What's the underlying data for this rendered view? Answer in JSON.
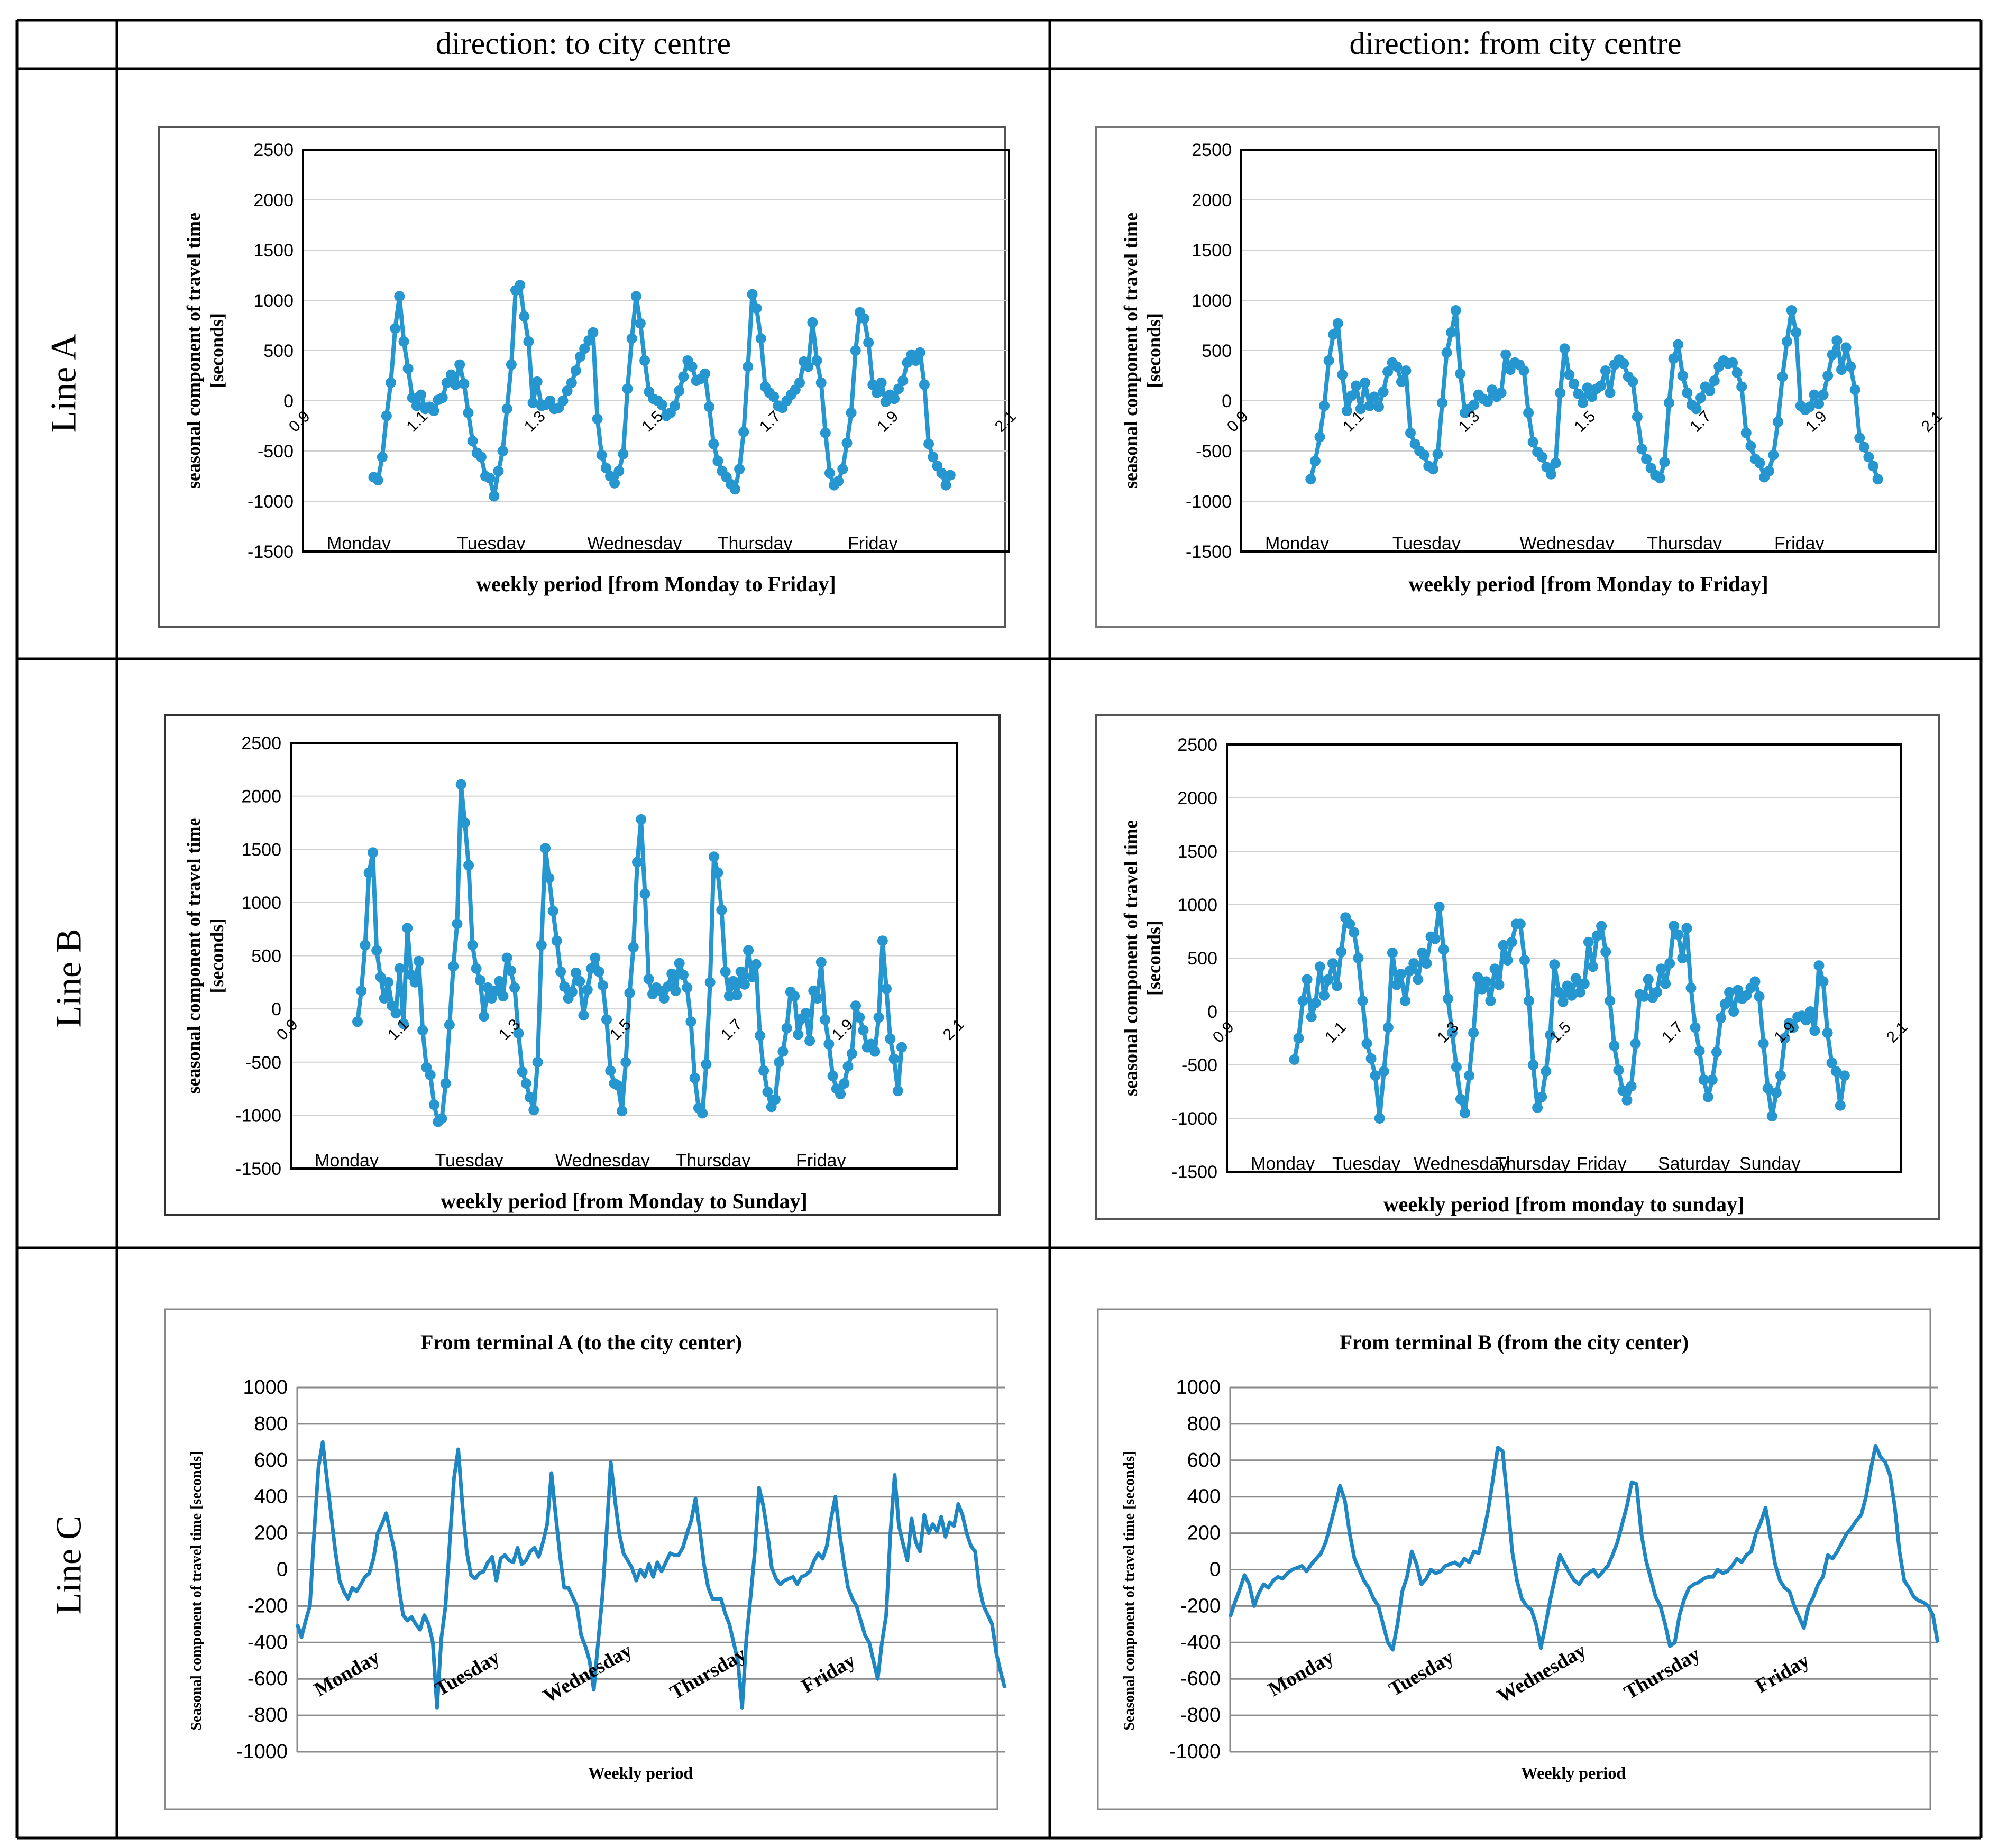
{
  "table": {
    "headers": [
      "direction: to city centre",
      "direction: from city centre"
    ],
    "rows": [
      "Line A",
      "Line B",
      "Line C"
    ]
  },
  "colors": {
    "line": "#2596D0",
    "lineC": "#1F86C4",
    "grid": "#D0D0D0",
    "gridC": "#8A8A8A",
    "frame": "#000000"
  },
  "chart_data": [
    {
      "id": "A_to",
      "type": "line",
      "title": "",
      "xlabel": "weekly period  [from Monday to Friday]",
      "ylabel": "seasonal component of travel time [seconds]",
      "ylim": [
        -1500,
        2500
      ],
      "yticks": [
        -1500,
        -1000,
        -500,
        0,
        500,
        1000,
        1500,
        2000,
        2500
      ],
      "xlim": [
        0.9,
        2.1
      ],
      "xticks": [
        "0.9",
        "1.1",
        "1.3",
        "1.5",
        "1.7",
        "1.9",
        "2.1"
      ],
      "day_labels": [
        "Monday",
        "Tuesday",
        "Wednesday",
        "Thursday",
        "Friday"
      ],
      "x_start": 1.02,
      "x_end": 2.0,
      "values": [
        -760,
        -790,
        -560,
        -150,
        180,
        720,
        1040,
        590,
        320,
        30,
        -50,
        60,
        -80,
        -60,
        -100,
        10,
        30,
        180,
        260,
        160,
        360,
        170,
        -120,
        -400,
        -520,
        -560,
        -750,
        -770,
        -950,
        -700,
        -500,
        -80,
        360,
        1100,
        1150,
        840,
        590,
        -20,
        190,
        -50,
        -40,
        0,
        -80,
        -70,
        0,
        100,
        180,
        300,
        440,
        520,
        600,
        680,
        -180,
        -540,
        -670,
        -750,
        -820,
        -700,
        -530,
        120,
        620,
        1040,
        770,
        400,
        90,
        20,
        0,
        -40,
        -150,
        -120,
        -50,
        100,
        240,
        400,
        340,
        200,
        220,
        270,
        -60,
        -430,
        -600,
        -700,
        -760,
        -830,
        -880,
        -680,
        -310,
        340,
        1060,
        920,
        620,
        140,
        80,
        40,
        -50,
        -70,
        0,
        60,
        110,
        180,
        390,
        340,
        780,
        400,
        180,
        -320,
        -720,
        -840,
        -800,
        -680,
        -420,
        -120,
        500,
        880,
        820,
        580,
        160,
        80,
        180,
        -10,
        60,
        20,
        120,
        200,
        380,
        460,
        400,
        480,
        160,
        -430,
        -560,
        -650,
        -720,
        -840,
        -740
      ]
    },
    {
      "id": "A_from",
      "type": "line",
      "title": "",
      "xlabel": "weekly period  [from Monday to Friday]",
      "ylabel": "seasonal component of travel time [seconds]",
      "ylim": [
        -1500,
        2500
      ],
      "yticks": [
        -1500,
        -1000,
        -500,
        0,
        500,
        1000,
        1500,
        2000,
        2500
      ],
      "xlim": [
        0.9,
        2.1
      ],
      "xticks": [
        "0.9",
        "1.1",
        "1.3",
        "1.5",
        "1.7",
        "1.9",
        "2.1"
      ],
      "day_labels": [
        "Monday",
        "Tuesday",
        "Wednesday",
        "Thursday",
        "Friday"
      ],
      "x_start": 1.02,
      "x_end": 2.0,
      "values": [
        -780,
        -600,
        -360,
        -50,
        400,
        660,
        770,
        260,
        -100,
        50,
        150,
        -80,
        180,
        -50,
        40,
        -60,
        90,
        290,
        380,
        340,
        190,
        300,
        -320,
        -430,
        -500,
        -540,
        -650,
        -680,
        -530,
        -20,
        480,
        680,
        900,
        270,
        -120,
        -80,
        -40,
        60,
        20,
        -10,
        110,
        40,
        80,
        460,
        310,
        380,
        360,
        300,
        -120,
        -410,
        -510,
        -560,
        -660,
        -730,
        -620,
        80,
        520,
        260,
        170,
        70,
        -20,
        130,
        40,
        120,
        150,
        300,
        80,
        360,
        410,
        370,
        240,
        190,
        -160,
        -480,
        -580,
        -670,
        -740,
        -770,
        -610,
        -20,
        420,
        560,
        250,
        80,
        -40,
        -80,
        30,
        140,
        100,
        200,
        340,
        400,
        370,
        380,
        280,
        140,
        -320,
        -450,
        -580,
        -620,
        -760,
        -700,
        -540,
        -210,
        240,
        590,
        900,
        680,
        -50,
        -90,
        -60,
        60,
        -30,
        60,
        250,
        460,
        600,
        310,
        530,
        340,
        110,
        -370,
        -460,
        -560,
        -650,
        -780
      ]
    },
    {
      "id": "B_to",
      "type": "line",
      "title": "",
      "xlabel": "weekly period  [from Monday to Sunday]",
      "ylabel": "seasonal component of travel time [seconds]",
      "ylim": [
        -1500,
        2500
      ],
      "yticks": [
        -1500,
        -1000,
        -500,
        0,
        500,
        1000,
        1500,
        2000,
        2500
      ],
      "xlim": [
        0.9,
        2.1
      ],
      "xticks": [
        "0.9",
        "1.1",
        "1.3",
        "1.5",
        "1.7",
        "1.9",
        "2.1"
      ],
      "day_labels": [
        "Monday",
        "Tuesday",
        "Wednesday",
        "Thursday",
        "Friday"
      ],
      "x_start": 1.02,
      "x_end": 2.0,
      "values": [
        -120,
        170,
        600,
        1280,
        1470,
        550,
        300,
        100,
        250,
        30,
        -40,
        380,
        -140,
        760,
        320,
        250,
        450,
        -200,
        -550,
        -620,
        -900,
        -1060,
        -1030,
        -700,
        -150,
        400,
        800,
        2110,
        1750,
        1350,
        600,
        380,
        270,
        -70,
        200,
        100,
        170,
        260,
        120,
        480,
        360,
        200,
        -230,
        -590,
        -700,
        -830,
        -950,
        -500,
        600,
        1510,
        1230,
        920,
        640,
        350,
        210,
        100,
        160,
        340,
        260,
        -60,
        180,
        380,
        480,
        350,
        220,
        -100,
        -580,
        -700,
        -720,
        -960,
        -500,
        150,
        580,
        1380,
        1780,
        1080,
        280,
        140,
        200,
        170,
        100,
        210,
        330,
        170,
        430,
        320,
        200,
        -120,
        -650,
        -930,
        -980,
        -520,
        250,
        1430,
        1280,
        930,
        350,
        120,
        260,
        130,
        350,
        230,
        550,
        300,
        420,
        -250,
        -580,
        -780,
        -920,
        -850,
        -500,
        -400,
        -180,
        160,
        120,
        -240,
        -90,
        -40,
        -300,
        170,
        100,
        440,
        -100,
        -330,
        -630,
        -750,
        -800,
        -700,
        -540,
        -420,
        30,
        -80,
        -200,
        -360,
        -330,
        -400,
        -80,
        640,
        190,
        -280,
        -470,
        -770,
        -360
      ]
    },
    {
      "id": "B_from",
      "type": "line",
      "title": "",
      "xlabel": "weekly period  [from monday to sunday]",
      "ylabel": "seasonal component of travel time [seconds]",
      "ylim": [
        -1500,
        2500
      ],
      "yticks": [
        -1500,
        -1000,
        -500,
        0,
        500,
        1000,
        1500,
        2000,
        2500
      ],
      "xlim": [
        0.9,
        2.1
      ],
      "xticks": [
        "0.9",
        "1.1",
        "1.3",
        "1.5",
        "1.7",
        "1.9",
        "2.1"
      ],
      "day_labels": [
        "Monday",
        "Tuesday",
        "Wednesday",
        "Thursday",
        "Friday",
        "Saturday",
        "Sunday"
      ],
      "x_start": 1.02,
      "x_end": 2.0,
      "values": [
        -450,
        -250,
        100,
        300,
        -50,
        80,
        420,
        150,
        300,
        450,
        240,
        560,
        880,
        820,
        740,
        500,
        100,
        -300,
        -440,
        -600,
        -1000,
        -560,
        -150,
        550,
        250,
        350,
        100,
        380,
        450,
        300,
        550,
        450,
        700,
        680,
        980,
        580,
        120,
        -200,
        -520,
        -820,
        -950,
        -600,
        -200,
        320,
        210,
        280,
        100,
        400,
        250,
        620,
        480,
        650,
        820,
        820,
        480,
        100,
        -500,
        -900,
        -800,
        -560,
        -220,
        440,
        180,
        90,
        240,
        150,
        310,
        180,
        260,
        650,
        420,
        710,
        800,
        560,
        100,
        -320,
        -550,
        -740,
        -830,
        -700,
        -300,
        160,
        140,
        300,
        130,
        180,
        400,
        260,
        450,
        800,
        720,
        500,
        780,
        220,
        -150,
        -370,
        -640,
        -800,
        -640,
        -380,
        -60,
        70,
        180,
        0,
        200,
        120,
        150,
        220,
        280,
        140,
        -300,
        -720,
        -980,
        -760,
        -600,
        -250,
        -110,
        -150,
        -50,
        -40,
        -80,
        0,
        -180,
        430,
        280,
        -200,
        -480,
        -560,
        -880,
        -600
      ]
    },
    {
      "id": "C_to",
      "type": "line",
      "title": "From terminal A (to the city center)",
      "xlabel": "Weekly period",
      "ylabel": "Seasonal component of travel time [seconds]",
      "ylim": [
        -1000,
        1000
      ],
      "yticks": [
        -1000,
        -800,
        -600,
        -400,
        -200,
        0,
        200,
        400,
        600,
        800,
        1000
      ],
      "day_labels": [
        "Monday",
        "Tuesday",
        "Wednesday",
        "Thursday",
        "Friday"
      ],
      "values": [
        -300,
        -370,
        -280,
        -200,
        200,
        560,
        700,
        500,
        300,
        100,
        -60,
        -120,
        -160,
        -100,
        -120,
        -80,
        -40,
        -20,
        60,
        200,
        250,
        310,
        200,
        100,
        -100,
        -250,
        -280,
        -260,
        -300,
        -330,
        -250,
        -300,
        -400,
        -760,
        -380,
        -200,
        150,
        500,
        660,
        350,
        100,
        -30,
        -50,
        -20,
        -10,
        40,
        70,
        -60,
        60,
        80,
        50,
        40,
        120,
        30,
        50,
        100,
        120,
        70,
        150,
        250,
        530,
        300,
        80,
        -100,
        -100,
        -150,
        -200,
        -360,
        -420,
        -500,
        -660,
        -400,
        -150,
        200,
        590,
        380,
        200,
        90,
        50,
        10,
        -60,
        0,
        -40,
        30,
        -40,
        40,
        -10,
        40,
        90,
        80,
        80,
        120,
        200,
        270,
        390,
        220,
        30,
        -100,
        -160,
        -160,
        -160,
        -240,
        -300,
        -400,
        -500,
        -760,
        -380,
        -150,
        100,
        450,
        350,
        200,
        10,
        -50,
        -80,
        -60,
        -50,
        -40,
        -80,
        -40,
        -30,
        -10,
        50,
        90,
        60,
        130,
        280,
        400,
        200,
        40,
        -100,
        -160,
        -200,
        -280,
        -360,
        -400,
        -500,
        -600,
        -400,
        -250,
        200,
        520,
        240,
        140,
        50,
        280,
        150,
        100,
        300,
        200,
        250,
        210,
        290,
        180,
        260,
        240,
        360,
        300,
        200,
        130,
        100,
        -100,
        -200,
        -250,
        -300,
        -460,
        -560,
        -650
      ]
    },
    {
      "id": "C_from",
      "type": "line",
      "title": "From terminal B (from the city center)",
      "xlabel": "Weekly period",
      "ylabel": "Seasonal component of travel time [seconds]",
      "ylim": [
        -1000,
        1000
      ],
      "yticks": [
        -1000,
        -800,
        -600,
        -400,
        -200,
        0,
        200,
        400,
        600,
        800,
        1000
      ],
      "day_labels": [
        "Monday",
        "Tuesday",
        "Wednesday",
        "Thursday",
        "Friday"
      ],
      "values": [
        -260,
        -180,
        -110,
        -30,
        -80,
        -200,
        -130,
        -80,
        -100,
        -60,
        -40,
        -50,
        -20,
        0,
        10,
        20,
        -10,
        30,
        60,
        90,
        150,
        250,
        350,
        460,
        380,
        200,
        60,
        0,
        -60,
        -100,
        -160,
        -200,
        -300,
        -400,
        -440,
        -300,
        -120,
        -40,
        100,
        30,
        -80,
        -50,
        0,
        -20,
        -10,
        20,
        30,
        40,
        20,
        60,
        40,
        100,
        90,
        200,
        330,
        500,
        670,
        650,
        380,
        100,
        -60,
        -160,
        -200,
        -220,
        -300,
        -430,
        -300,
        -160,
        -40,
        80,
        30,
        -20,
        -60,
        -80,
        -40,
        -20,
        0,
        -40,
        -10,
        20,
        80,
        150,
        250,
        350,
        480,
        470,
        200,
        50,
        -50,
        -150,
        -200,
        -300,
        -420,
        -400,
        -250,
        -160,
        -100,
        -80,
        -70,
        -50,
        -40,
        -40,
        0,
        -20,
        -10,
        20,
        60,
        40,
        80,
        100,
        200,
        260,
        340,
        180,
        30,
        -60,
        -100,
        -120,
        -200,
        -260,
        -320,
        -200,
        -150,
        -80,
        -40,
        80,
        60,
        100,
        150,
        200,
        230,
        270,
        300,
        400,
        550,
        680,
        620,
        590,
        520,
        350,
        100,
        -60,
        -100,
        -150,
        -170,
        -180,
        -200,
        -250,
        -400
      ]
    }
  ]
}
